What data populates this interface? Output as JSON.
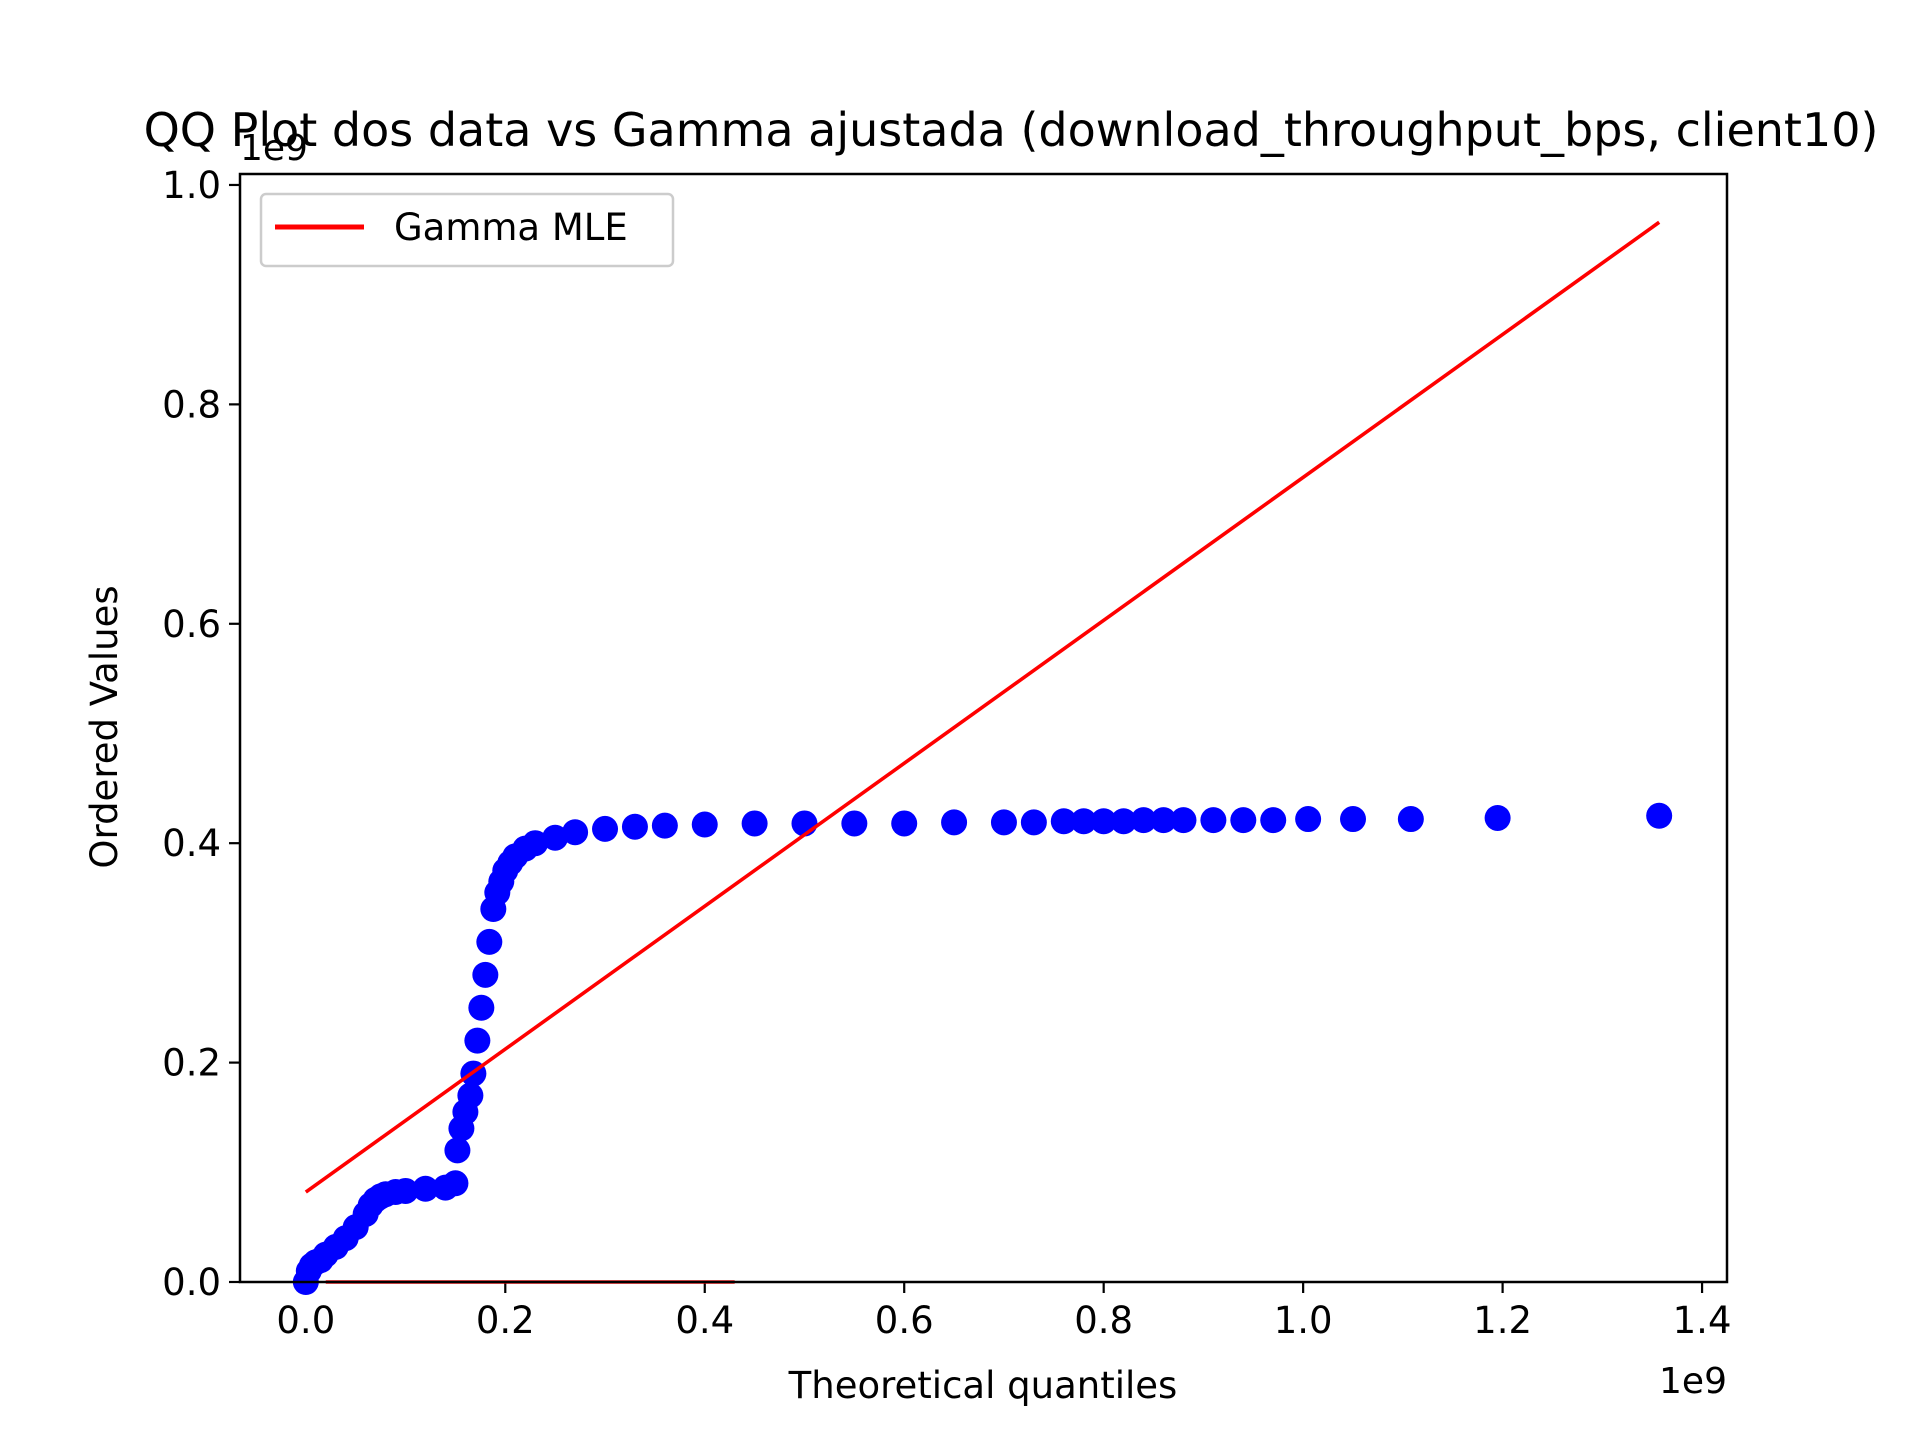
{
  "chart_data": {
    "type": "scatter",
    "title": "QQ Plot dos data vs Gamma ajustada (download_throughput_bps, client10)",
    "xlabel": "Theoretical quantiles",
    "ylabel": "Ordered Values",
    "x_offset_text": "1e9",
    "y_offset_text": "1e9",
    "xlim": [
      -0.066,
      1.425
    ],
    "ylim": [
      0.0,
      1.01
    ],
    "x_ticks": [
      0.0,
      0.2,
      0.4,
      0.6,
      0.8,
      1.0,
      1.2,
      1.4
    ],
    "x_tick_labels": [
      "0.0",
      "0.2",
      "0.4",
      "0.6",
      "0.8",
      "1.0",
      "1.2",
      "1.4"
    ],
    "y_ticks": [
      0.0,
      0.2,
      0.4,
      0.6,
      0.8,
      1.0
    ],
    "y_tick_labels": [
      "0.0",
      "0.2",
      "0.4",
      "0.6",
      "0.8",
      "1.0"
    ],
    "grid": false,
    "legend_position": "top-left",
    "colors": {
      "points": "#0000ff",
      "fit_line": "#ff0000"
    },
    "series": [
      {
        "kind": "points",
        "color": "#0000ff",
        "x": [
          0.0,
          0.003,
          0.006,
          0.01,
          0.015,
          0.02,
          0.03,
          0.04,
          0.05,
          0.06,
          0.065,
          0.07,
          0.075,
          0.08,
          0.09,
          0.1,
          0.12,
          0.14,
          0.15,
          0.152,
          0.156,
          0.16,
          0.165,
          0.168,
          0.172,
          0.176,
          0.18,
          0.184,
          0.188,
          0.192,
          0.196,
          0.2,
          0.205,
          0.21,
          0.22,
          0.23,
          0.25,
          0.27,
          0.3,
          0.33,
          0.36,
          0.4,
          0.45,
          0.5,
          0.55,
          0.6,
          0.65,
          0.7,
          0.73,
          0.76,
          0.78,
          0.8,
          0.82,
          0.84,
          0.86,
          0.88,
          0.91,
          0.94,
          0.97,
          1.005,
          1.05,
          1.108,
          1.195,
          1.357
        ],
        "y": [
          0.0,
          0.01,
          0.015,
          0.018,
          0.02,
          0.025,
          0.032,
          0.04,
          0.05,
          0.062,
          0.07,
          0.075,
          0.078,
          0.08,
          0.082,
          0.083,
          0.085,
          0.086,
          0.09,
          0.12,
          0.14,
          0.155,
          0.17,
          0.19,
          0.22,
          0.25,
          0.28,
          0.31,
          0.34,
          0.355,
          0.365,
          0.375,
          0.382,
          0.388,
          0.395,
          0.4,
          0.405,
          0.41,
          0.413,
          0.415,
          0.416,
          0.417,
          0.418,
          0.418,
          0.418,
          0.418,
          0.419,
          0.419,
          0.419,
          0.42,
          0.42,
          0.42,
          0.42,
          0.421,
          0.421,
          0.421,
          0.421,
          0.421,
          0.421,
          0.422,
          0.422,
          0.422,
          0.423,
          0.425
        ]
      },
      {
        "kind": "line",
        "name": "Gamma MLE",
        "color": "#ff0000",
        "x": [
          0.0,
          1.357
        ],
        "y": [
          0.082,
          0.966
        ]
      },
      {
        "kind": "line",
        "color": "#ff0000",
        "x": [
          0.02,
          0.43
        ],
        "y": [
          0.0,
          0.0
        ]
      }
    ],
    "legend": [
      {
        "label": "Gamma MLE",
        "color": "#ff0000"
      }
    ]
  }
}
